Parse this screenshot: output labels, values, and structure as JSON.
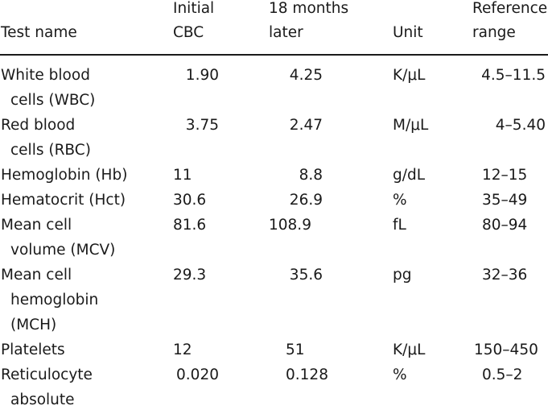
{
  "header": {
    "test_name": "Test name",
    "initial_1": "Initial",
    "initial_2": "CBC",
    "later_1": "18 months",
    "later_2": "later",
    "unit": "Unit",
    "ref_1": "Reference",
    "ref_2": "range"
  },
  "rows": [
    {
      "name": [
        "White blood",
        "cells (WBC)"
      ],
      "initial": "1.90",
      "later": "4.25",
      "unit": "K/μL",
      "ref": "4.5–11.5"
    },
    {
      "name": [
        "Red blood",
        "cells (RBC)"
      ],
      "initial": "3.75",
      "later": "2.47",
      "unit": "M/μL",
      "ref": "4–5.40"
    },
    {
      "name": [
        "Hemoglobin (Hb)"
      ],
      "initial": "11",
      "later": "8.8",
      "unit": "g/dL",
      "ref": "12–15"
    },
    {
      "name": [
        "Hematocrit (Hct)"
      ],
      "initial": "30.6",
      "later": "26.9",
      "unit": "%",
      "ref": "35–49"
    },
    {
      "name": [
        "Mean cell",
        "volume (MCV)"
      ],
      "initial": "81.6",
      "later": "108.9",
      "unit": "fL",
      "ref": "80–94"
    },
    {
      "name": [
        "Mean cell",
        "hemoglobin",
        "(MCH)"
      ],
      "initial": "29.3",
      "later": "35.6",
      "unit": "pg",
      "ref": "32–36"
    },
    {
      "name": [
        "Platelets"
      ],
      "initial": "12",
      "later": "51",
      "unit": "K/μL",
      "ref": "150–450"
    },
    {
      "name": [
        "Reticulocyte",
        "absolute"
      ],
      "initial": "0.020",
      "later": "0.128",
      "unit": "%",
      "ref": "0.5–2"
    }
  ]
}
